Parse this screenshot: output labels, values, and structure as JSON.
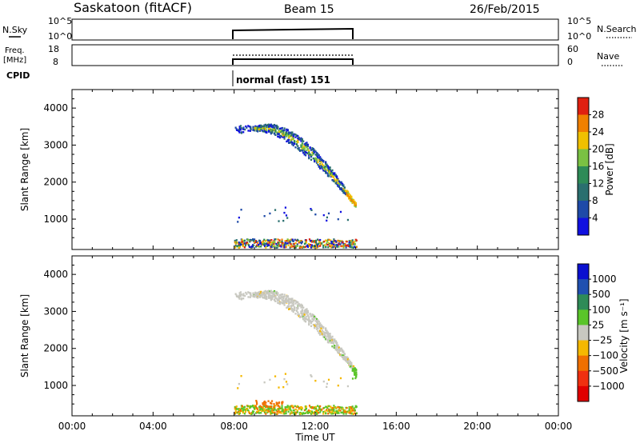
{
  "header": {
    "station": "Saskatoon (fitACF)",
    "beam": "Beam 15",
    "date": "26/Feb/2015"
  },
  "nsky_panel": {
    "left_label": "N.Sky",
    "right_label": "N.Search",
    "ticks_left": [
      "10^5",
      "10^0"
    ],
    "ticks_right": [
      "10^5",
      "10^0"
    ]
  },
  "freq_panel": {
    "left_label_1": "Freq.",
    "left_label_2": "[MHz]",
    "right_label": "Nave",
    "ticks_left": [
      "18",
      "8"
    ],
    "ticks_right": [
      "60",
      "0"
    ]
  },
  "cpid": {
    "label": "CPID",
    "mode": "normal (fast) 151"
  },
  "colors": {
    "power": [
      "#1010e0",
      "#1e4aa8",
      "#2a6f6f",
      "#2e8b57",
      "#7ac143",
      "#f0c000",
      "#f08000",
      "#e02010"
    ],
    "velocity": [
      "#0a10d0",
      "#2050b0",
      "#2e8b57",
      "#5ac52a",
      "#c8c8c0",
      "#f5b800",
      "#f07000",
      "#f03010",
      "#e00000"
    ]
  },
  "chart_data": [
    {
      "type": "heatmap",
      "name": "power",
      "ylabel": "Slant Range [km]",
      "xlabel": "",
      "xlim": [
        0,
        24
      ],
      "ylim": [
        180,
        4500
      ],
      "yticks": [
        "1000",
        "2000",
        "3000",
        "4000"
      ],
      "colorbar_label": "Power [dB]",
      "colorbar_ticks": [
        "4",
        "8",
        "12",
        "16",
        "20",
        "24",
        "28"
      ],
      "data_window_hours": [
        8.0,
        14.0
      ]
    },
    {
      "type": "heatmap",
      "name": "velocity",
      "ylabel": "Slant Range [km]",
      "xlabel": "Time UT",
      "xlim": [
        0,
        24
      ],
      "ylim": [
        180,
        4500
      ],
      "xticks": [
        "00:00",
        "04:00",
        "08:00",
        "12:00",
        "16:00",
        "20:00",
        "00:00"
      ],
      "yticks": [
        "1000",
        "2000",
        "3000",
        "4000"
      ],
      "colorbar_label": "Velocity [m s⁻¹]",
      "colorbar_ticks": [
        "1000",
        "500",
        "100",
        "25",
        "−25",
        "−100",
        "−500",
        "−1000"
      ],
      "data_window_hours": [
        8.0,
        14.0
      ]
    }
  ]
}
